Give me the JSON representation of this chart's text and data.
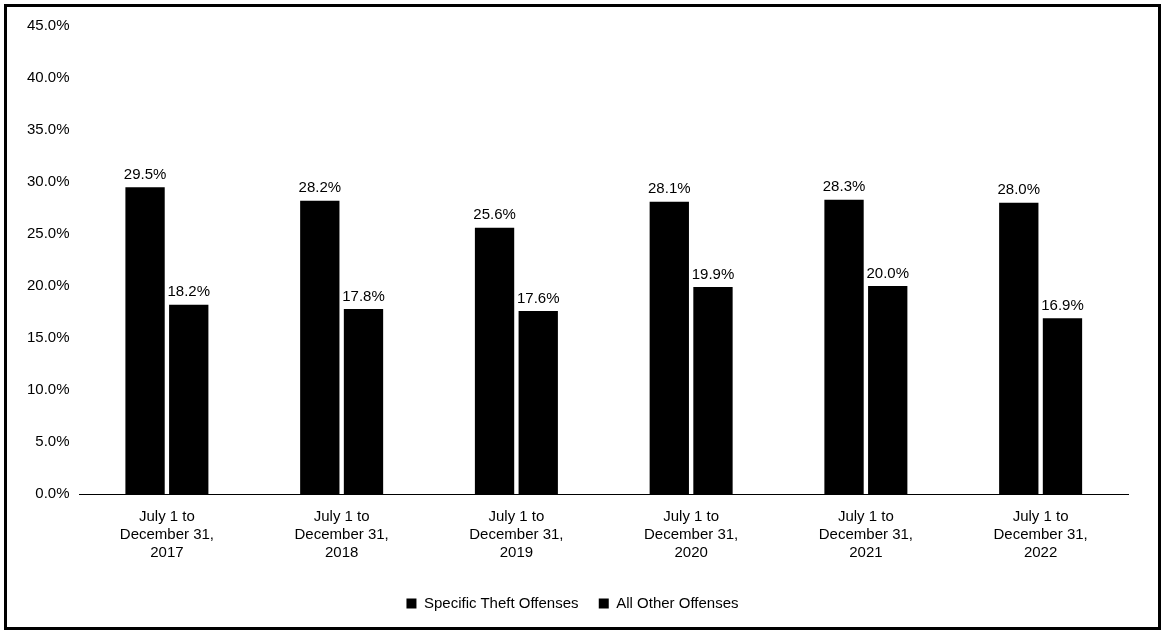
{
  "chart_data": {
    "type": "bar",
    "categories": [
      "July 1 to\nDecember 31,\n2017",
      "July 1 to\nDecember 31,\n2018",
      "July 1 to\nDecember 31,\n2019",
      "July 1 to\nDecember 31,\n2020",
      "July 1 to\nDecember 31,\n2021",
      "July 1 to\nDecember 31,\n2022"
    ],
    "series": [
      {
        "name": "Specific Theft Offenses",
        "color": "#000000",
        "values": [
          29.5,
          28.2,
          25.6,
          28.1,
          28.3,
          28.0
        ],
        "value_labels": [
          "29.5%",
          "28.2%",
          "25.6%",
          "28.1%",
          "28.3%",
          "28.0%"
        ]
      },
      {
        "name": "All Other Offenses",
        "color": "#000000",
        "values": [
          18.2,
          17.8,
          17.6,
          19.9,
          20.0,
          16.9
        ],
        "value_labels": [
          "18.2%",
          "17.8%",
          "17.6%",
          "19.9%",
          "20.0%",
          "16.9%"
        ]
      }
    ],
    "ylim": [
      0,
      45
    ],
    "yticks": [
      {
        "value": 0,
        "label": "0.0%"
      },
      {
        "value": 5,
        "label": "5.0%"
      },
      {
        "value": 10,
        "label": "10.0%"
      },
      {
        "value": 15,
        "label": "15.0%"
      },
      {
        "value": 20,
        "label": "20.0%"
      },
      {
        "value": 25,
        "label": "25.0%"
      },
      {
        "value": 30,
        "label": "30.0%"
      },
      {
        "value": 35,
        "label": "35.0%"
      },
      {
        "value": 40,
        "label": "40.0%"
      },
      {
        "value": 45,
        "label": "45.0%"
      }
    ],
    "grid": false,
    "legend": "bottom"
  }
}
